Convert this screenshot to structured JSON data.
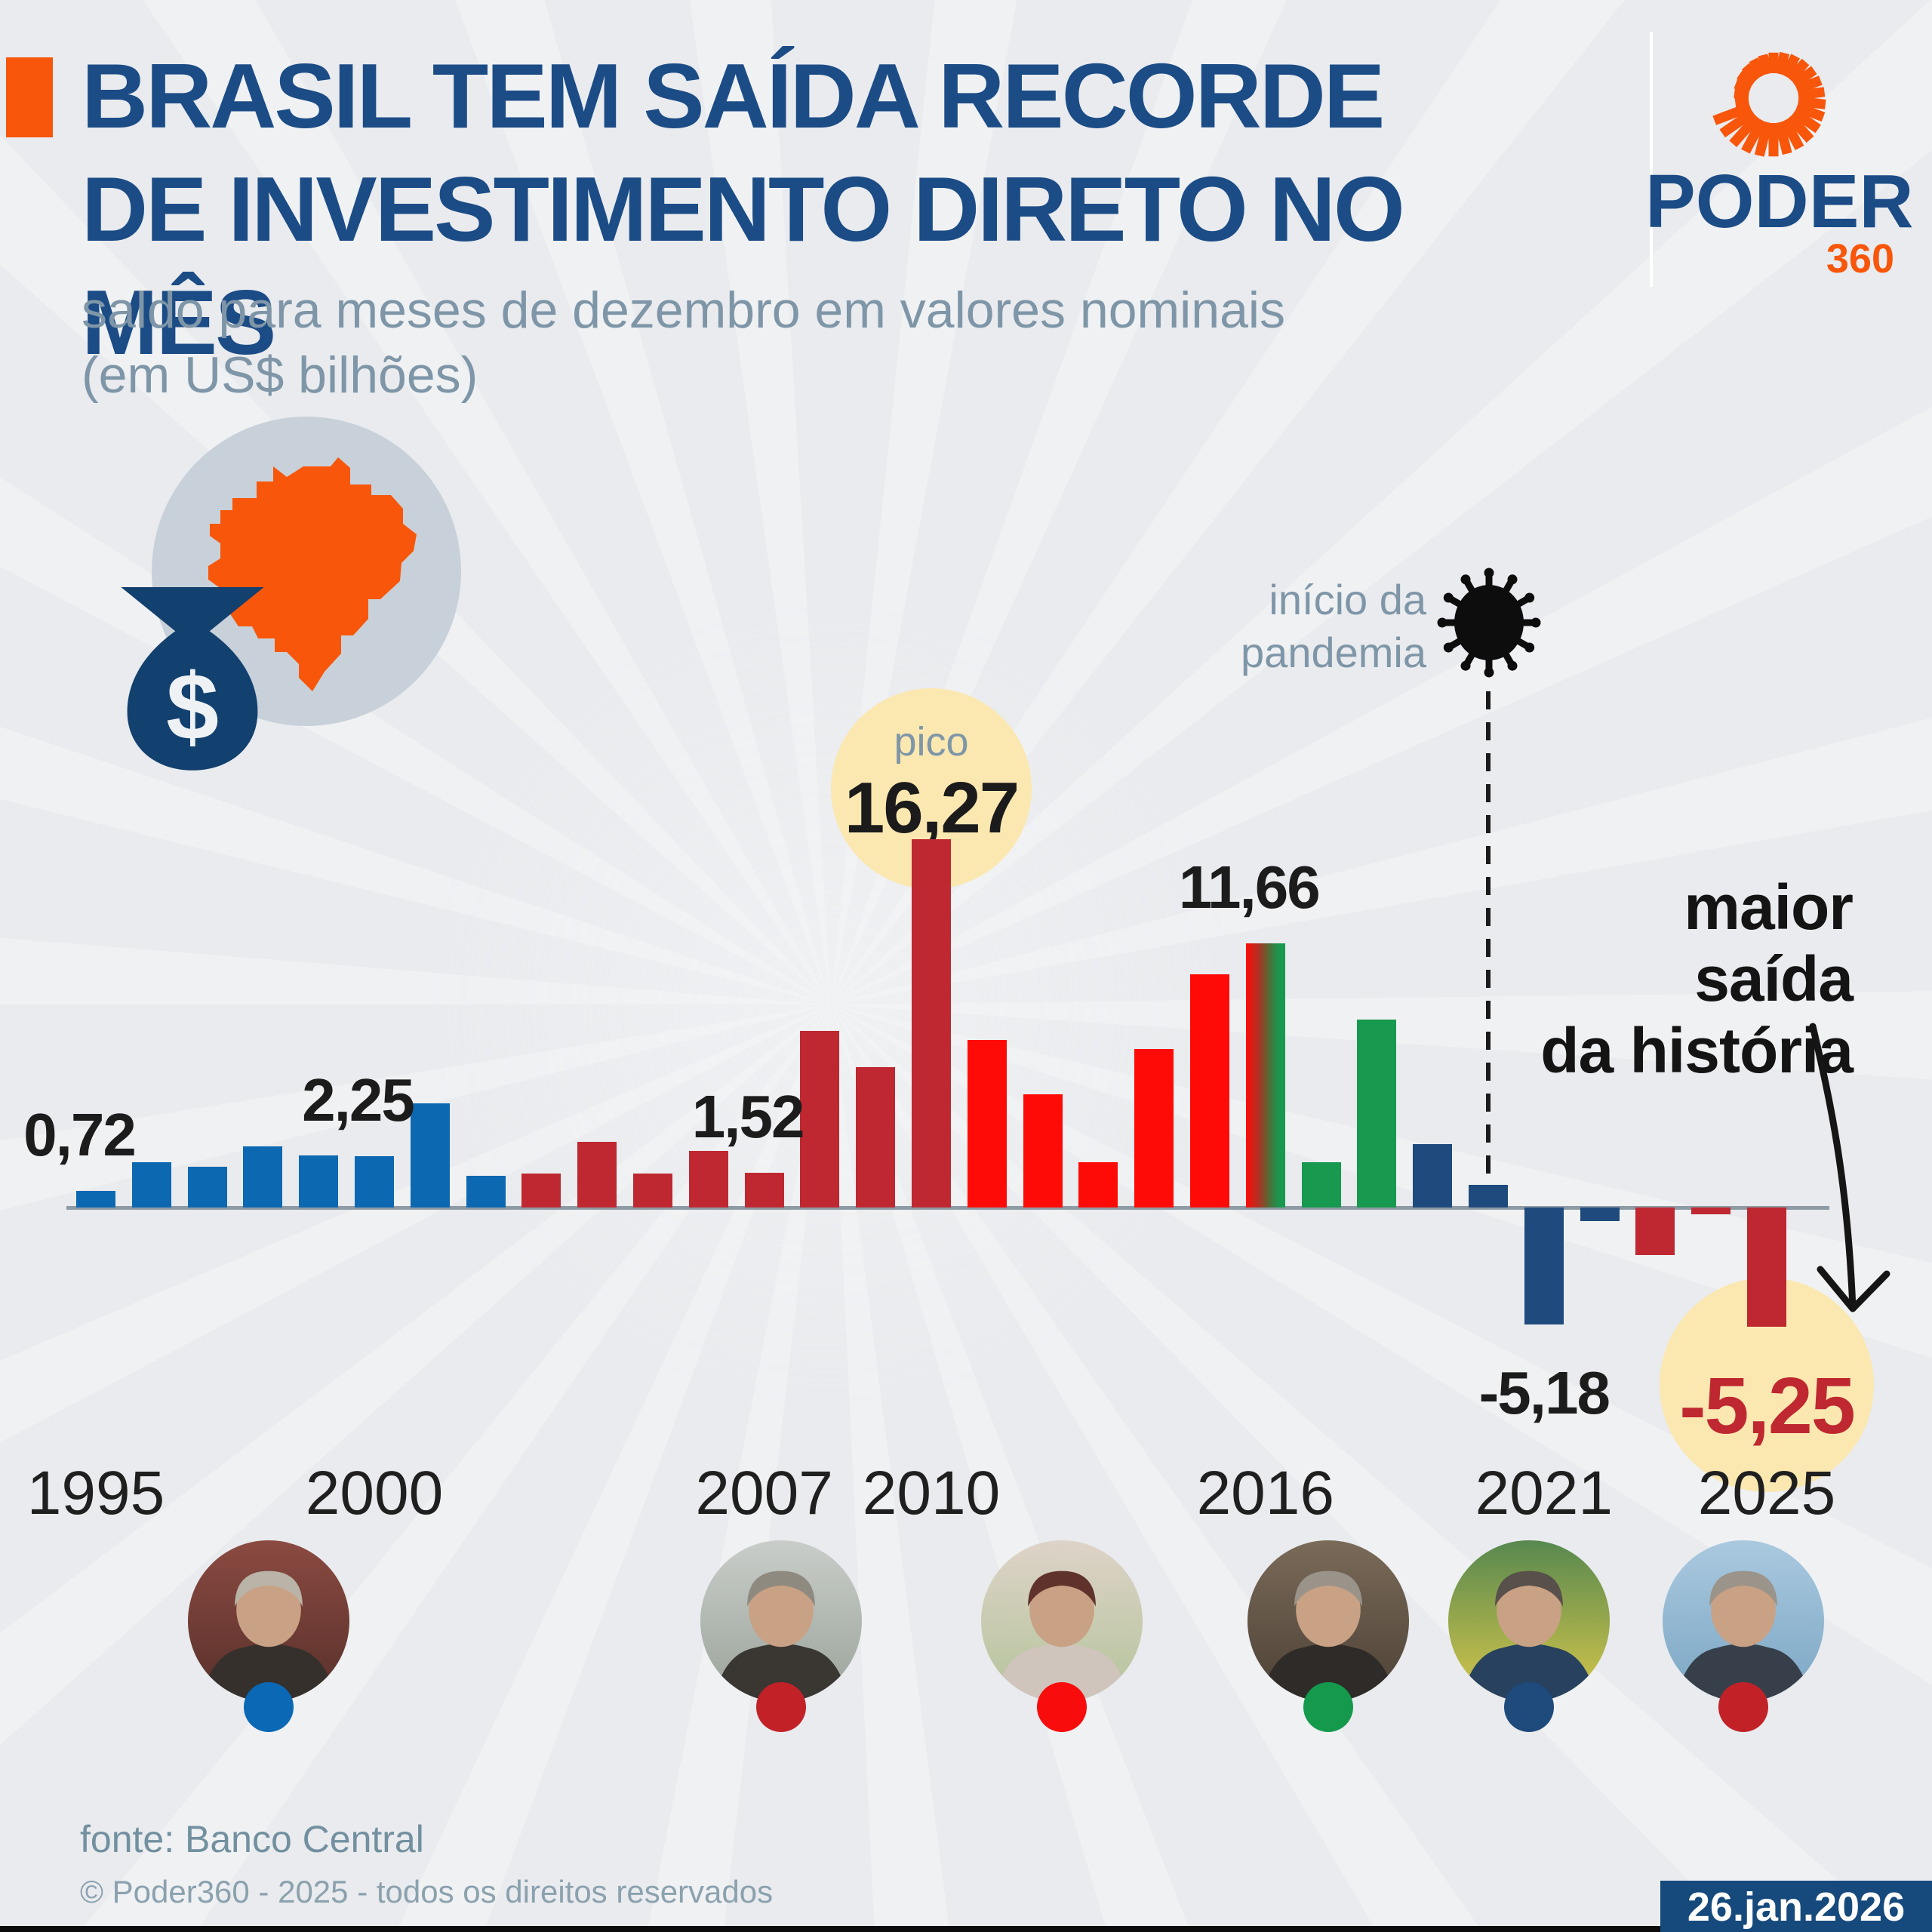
{
  "header": {
    "title_line1": "BRASIL TEM SAÍDA RECORDE",
    "title_line2": "DE INVESTIMENTO DIRETO NO MÊS",
    "subtitle_line1": "saldo para meses de dezembro em valores nominais",
    "subtitle_line2": "(em US$ bilhões)"
  },
  "logo": {
    "brand": "PODER",
    "suffix": "360"
  },
  "colors": {
    "accent_orange": "#f8560a",
    "title_navy": "#1c4c86",
    "subtitle_slate": "#7e96a7",
    "axis_gray": "#8e9aa4",
    "highlight_yellow": "#fbe8b1",
    "fhc_blue": "#0d68b2",
    "lula_crimson": "#bf2830",
    "dilma_red": "#fe0b07",
    "temer_green": "#17994f",
    "bolsonaro_navy": "#1f4a7d",
    "record_red": "#bf2831",
    "badge_navy": "#164a7c",
    "label_dark": "#1c1c1c"
  },
  "chart_data": {
    "type": "bar",
    "title": "saldo para meses de dezembro em valores nominais",
    "unit": "US$ bilhões",
    "ylim": [
      -6,
      17
    ],
    "grid": false,
    "x_tick_labels": [
      "1995",
      "2000",
      "2007",
      "2010",
      "2016",
      "2021",
      "2025"
    ],
    "points": [
      {
        "year": 1995,
        "value": 0.72,
        "president": "fhc"
      },
      {
        "year": 1996,
        "value": 2.0,
        "president": "fhc"
      },
      {
        "year": 1997,
        "value": 1.8,
        "president": "fhc"
      },
      {
        "year": 1998,
        "value": 2.7,
        "president": "fhc"
      },
      {
        "year": 1999,
        "value": 2.3,
        "president": "fhc"
      },
      {
        "year": 2000,
        "value": 2.25,
        "president": "fhc"
      },
      {
        "year": 2001,
        "value": 4.6,
        "president": "fhc"
      },
      {
        "year": 2002,
        "value": 1.4,
        "president": "fhc"
      },
      {
        "year": 2003,
        "value": 1.5,
        "president": "lula"
      },
      {
        "year": 2004,
        "value": 2.9,
        "president": "lula"
      },
      {
        "year": 2005,
        "value": 1.5,
        "president": "lula"
      },
      {
        "year": 2006,
        "value": 2.5,
        "president": "lula"
      },
      {
        "year": 2007,
        "value": 1.52,
        "president": "lula"
      },
      {
        "year": 2008,
        "value": 7.8,
        "president": "lula"
      },
      {
        "year": 2009,
        "value": 6.2,
        "president": "lula"
      },
      {
        "year": 2010,
        "value": 16.27,
        "president": "lula"
      },
      {
        "year": 2011,
        "value": 7.4,
        "president": "dilma"
      },
      {
        "year": 2012,
        "value": 5.0,
        "president": "dilma"
      },
      {
        "year": 2013,
        "value": 2.0,
        "president": "dilma"
      },
      {
        "year": 2014,
        "value": 7.0,
        "president": "dilma"
      },
      {
        "year": 2015,
        "value": 10.3,
        "president": "dilma"
      },
      {
        "year": 2016,
        "value": 11.66,
        "president": "dilma-temer"
      },
      {
        "year": 2017,
        "value": 2.0,
        "president": "temer"
      },
      {
        "year": 2018,
        "value": 8.3,
        "president": "temer"
      },
      {
        "year": 2019,
        "value": 2.8,
        "president": "bolsonaro"
      },
      {
        "year": 2020,
        "value": 1.0,
        "president": "bolsonaro"
      },
      {
        "year": 2021,
        "value": -5.18,
        "president": "bolsonaro"
      },
      {
        "year": 2022,
        "value": -0.6,
        "president": "bolsonaro"
      },
      {
        "year": 2023,
        "value": -2.1,
        "president": "lula-2"
      },
      {
        "year": 2024,
        "value": -0.3,
        "president": "lula-2"
      },
      {
        "year": 2025,
        "value": -5.25,
        "president": "lula-2"
      }
    ],
    "value_labels": [
      {
        "year": 1995,
        "text": "0,72",
        "style": "dark"
      },
      {
        "year": 2000,
        "text": "2,25",
        "style": "dark"
      },
      {
        "year": 2007,
        "text": "1,52",
        "style": "dark"
      },
      {
        "year": 2016,
        "text": "11,66",
        "style": "dark"
      },
      {
        "year": 2021,
        "text": "-5,18",
        "style": "dark"
      },
      {
        "year": 2025,
        "text": "-5,25",
        "style": "record"
      }
    ],
    "peak": {
      "label": "pico",
      "value": "16,27",
      "year": 2010
    },
    "pandemic": {
      "line1": "início da",
      "line2": "pandemia",
      "year": 2020
    },
    "record_note": {
      "line1": "maior saída",
      "line2": "da história",
      "year": 2025
    }
  },
  "presidents": [
    {
      "id": "fhc",
      "dot_color": "#0a68b5",
      "bg1": "#8a4a41",
      "bg2": "#58302b",
      "hair": "#b9b3a8",
      "suit": "#35302c",
      "skin": "#c9a184"
    },
    {
      "id": "lula",
      "dot_color": "#c22227",
      "bg1": "#c9cdc9",
      "bg2": "#9aa39a",
      "hair": "#8f8a80",
      "suit": "#3a3632",
      "skin": "#c9a184"
    },
    {
      "id": "dilma",
      "dot_color": "#f90c0c",
      "bg1": "#ded3c8",
      "bg2": "#b4c49b",
      "hair": "#5f332c",
      "suit": "#cfc5bd",
      "skin": "#c9a184"
    },
    {
      "id": "temer",
      "dot_color": "#14994d",
      "bg1": "#7a6a58",
      "bg2": "#4c4136",
      "hair": "#9a938a",
      "suit": "#2f2b28",
      "skin": "#c9a184"
    },
    {
      "id": "bolsonaro",
      "dot_color": "#1e4a7c",
      "bg1": "#57884f",
      "bg2": "#d8c84a",
      "hair": "#58504a",
      "suit": "#27415f",
      "skin": "#c9a184"
    },
    {
      "id": "lula-2",
      "dot_color": "#c22227",
      "bg1": "#aac9df",
      "bg2": "#7ba6c4",
      "hair": "#9a948a",
      "suit": "#37404a",
      "skin": "#c9a184"
    }
  ],
  "footer": {
    "source": "fonte: Banco Central",
    "copyright": "© Poder360 - 2025 - todos os direitos reservados"
  },
  "date_badge": {
    "text": "26.jan.2026"
  }
}
